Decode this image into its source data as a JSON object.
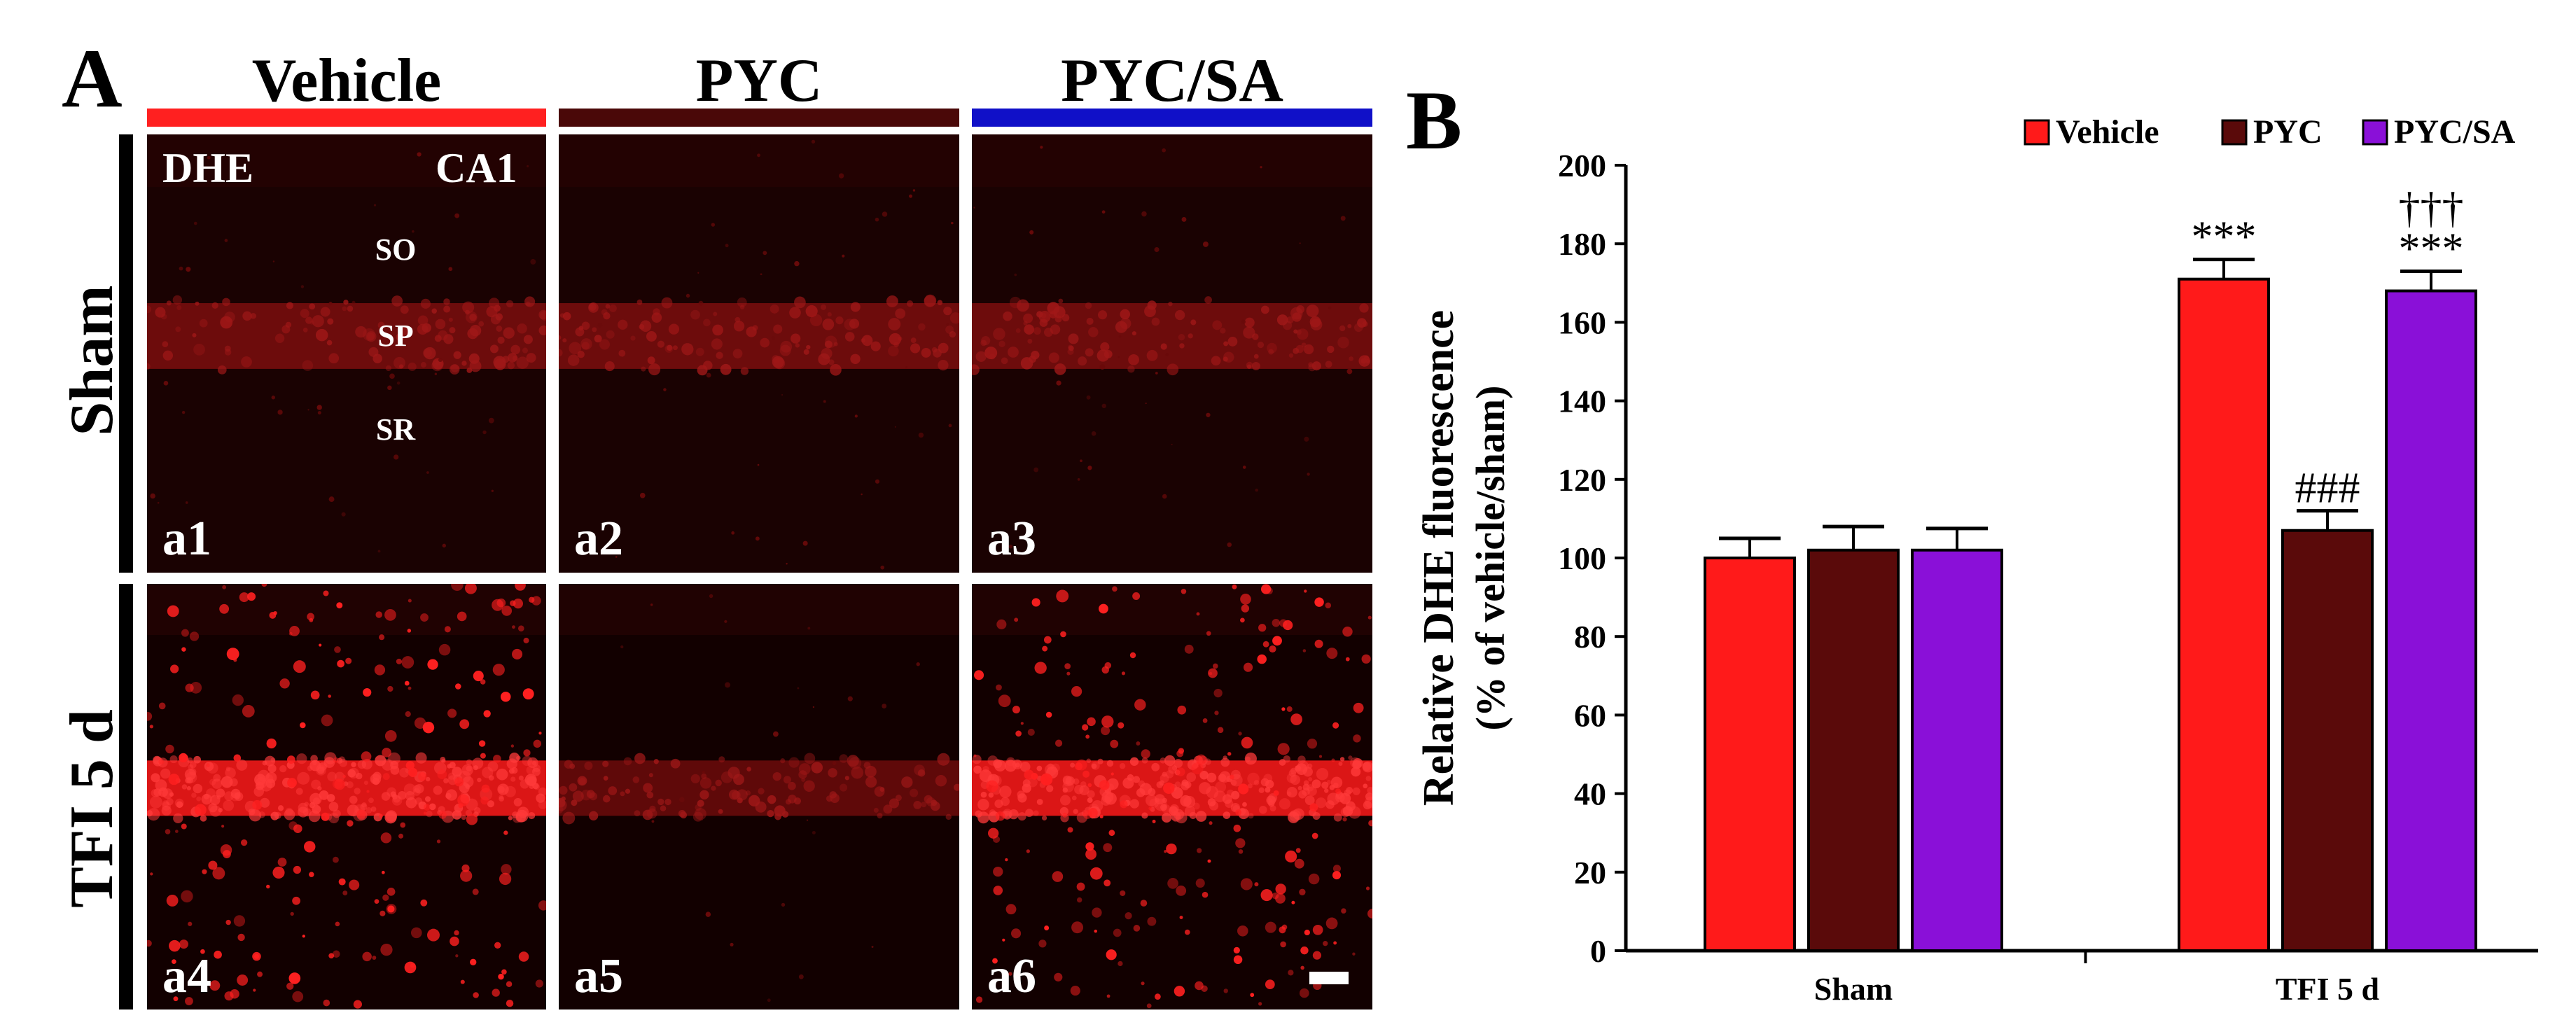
{
  "panelA": {
    "letter": "A",
    "columns": [
      {
        "label": "Vehicle",
        "color": "#ff2020"
      },
      {
        "label": "PYC",
        "color": "#4a0808"
      },
      {
        "label": "PYC/SA",
        "color": "#1010c8"
      }
    ],
    "rows": [
      "Sham",
      "TFI 5 d"
    ],
    "tiles": [
      "a1",
      "a2",
      "a3",
      "a4",
      "a5",
      "a6"
    ],
    "stain": "DHE",
    "region": "CA1",
    "layers": [
      "SO",
      "SP",
      "SR"
    ]
  },
  "panelB": {
    "letter": "B"
  },
  "chart_data": {
    "type": "bar",
    "title": "",
    "ylabel_line1": "Relative DHE fluorescence",
    "ylabel_line2": "(% of vehicle/sham)",
    "xlabel": "",
    "categories": [
      "Sham",
      "TFI 5 d"
    ],
    "ylim": [
      0,
      200
    ],
    "yticks": [
      0,
      20,
      40,
      60,
      80,
      100,
      120,
      140,
      160,
      180,
      200
    ],
    "legend_position": "top-right",
    "series": [
      {
        "name": "Vehicle",
        "color": "#ff1a1a",
        "values": [
          100,
          171
        ],
        "errors": [
          5,
          5
        ],
        "annotations": [
          "",
          "***"
        ]
      },
      {
        "name": "PYC",
        "color": "#5a0a0a",
        "values": [
          102,
          107
        ],
        "errors": [
          6,
          5
        ],
        "annotations": [
          "",
          "###"
        ]
      },
      {
        "name": "PYC/SA",
        "color": "#8a10d8",
        "values": [
          102,
          168
        ],
        "errors": [
          5.5,
          5
        ],
        "annotations": [
          "",
          "***\n†††"
        ]
      }
    ]
  }
}
